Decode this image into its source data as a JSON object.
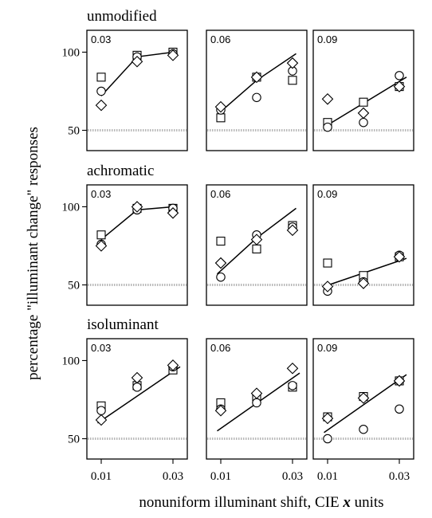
{
  "chart_data": {
    "type": "scatter",
    "ylabel": "percentage \"illuminant change\" responses",
    "xlabel_parts": [
      "nonuniform illuminant shift, CIE ",
      "x",
      " units"
    ],
    "x_ticks": [
      "0.01",
      "0.03"
    ],
    "y_ticks": [
      "50",
      "100"
    ],
    "x_values": [
      0.01,
      0.02,
      0.03
    ],
    "ylim": [
      37,
      114
    ],
    "xlim": [
      0.006,
      0.034
    ],
    "reference_line_y": 50,
    "rows": [
      {
        "title": "unmodified",
        "panels": [
          {
            "label": "0.03",
            "fit": [
              [
                0.01,
                72
              ],
              [
                0.02,
                97
              ],
              [
                0.03,
                100
              ]
            ],
            "squares": [
              84,
              98,
              100
            ],
            "circles": [
              75,
              97,
              99
            ],
            "diamonds": [
              66,
              94,
              98
            ]
          },
          {
            "label": "0.06",
            "fit": [
              [
                0.009,
                60
              ],
              [
                0.02,
                82
              ],
              [
                0.031,
                99
              ]
            ],
            "squares": [
              58,
              84,
              82
            ],
            "circles": [
              63,
              71,
              88
            ],
            "diamonds": [
              65,
              84,
              93
            ]
          },
          {
            "label": "0.09",
            "fit": [
              [
                0.009,
                52
              ],
              [
                0.032,
                84
              ]
            ],
            "squares": [
              55,
              68,
              78
            ],
            "circles": [
              52,
              55,
              85
            ],
            "diamonds": [
              70,
              61,
              78
            ]
          }
        ]
      },
      {
        "title": "achromatic",
        "panels": [
          {
            "label": "0.03",
            "fit": [
              [
                0.01,
                79
              ],
              [
                0.02,
                98
              ],
              [
                0.03,
                100
              ]
            ],
            "squares": [
              82,
              99,
              99
            ],
            "circles": [
              76,
              98,
              99
            ],
            "diamonds": [
              75,
              100,
              96
            ]
          },
          {
            "label": "0.06",
            "fit": [
              [
                0.009,
                57
              ],
              [
                0.02,
                80
              ],
              [
                0.031,
                99
              ]
            ],
            "squares": [
              78,
              73,
              88
            ],
            "circles": [
              55,
              82,
              87
            ],
            "diamonds": [
              64,
              79,
              85
            ]
          },
          {
            "label": "0.09",
            "fit": [
              [
                0.009,
                49
              ],
              [
                0.032,
                67
              ]
            ],
            "squares": [
              64,
              56,
              68
            ],
            "circles": [
              46,
              52,
              69
            ],
            "diamonds": [
              49,
              51,
              68
            ]
          }
        ]
      },
      {
        "title": "isoluminant",
        "panels": [
          {
            "label": "0.03",
            "fit": [
              [
                0.009,
                60
              ],
              [
                0.032,
                96
              ]
            ],
            "squares": [
              71,
              84,
              94
            ],
            "circles": [
              68,
              83,
              96
            ],
            "diamonds": [
              62,
              89,
              97
            ]
          },
          {
            "label": "0.06",
            "fit": [
              [
                0.009,
                55
              ],
              [
                0.032,
                92
              ]
            ],
            "squares": [
              73,
              77,
              83
            ],
            "circles": [
              69,
              73,
              84
            ],
            "diamonds": [
              68,
              79,
              95
            ]
          },
          {
            "label": "0.09",
            "fit": [
              [
                0.009,
                54
              ],
              [
                0.032,
                91
              ]
            ],
            "squares": [
              64,
              77,
              87
            ],
            "circles": [
              50,
              56,
              69
            ],
            "diamonds": [
              63,
              76,
              87
            ]
          }
        ]
      }
    ]
  }
}
